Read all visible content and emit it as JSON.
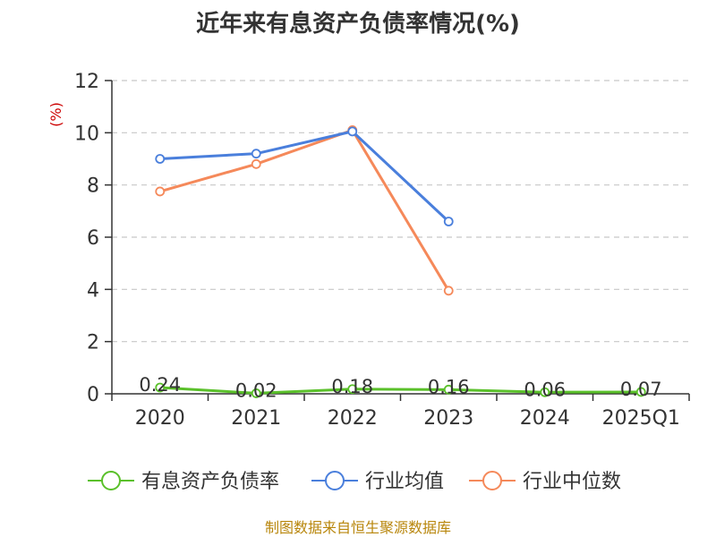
{
  "chart_data": {
    "type": "line",
    "title": "近年来有息资产负债率情况(%)",
    "ylabel": "(%)",
    "ylim": [
      0,
      12
    ],
    "yticks": [
      0,
      2,
      4,
      6,
      8,
      10,
      12
    ],
    "categories": [
      "2020",
      "2021",
      "2022",
      "2023",
      "2024",
      "2025Q1"
    ],
    "grid": true,
    "legend_position": "bottom",
    "series": [
      {
        "name": "有息资产负债率",
        "color": "#5ac02a",
        "values": [
          0.24,
          0.02,
          0.18,
          0.16,
          0.06,
          0.07
        ],
        "labels": [
          "0.24",
          "0.02",
          "0.18",
          "0.16",
          "0.06",
          "0.07"
        ]
      },
      {
        "name": "行业均值",
        "color": "#4a7fdc",
        "values": [
          9.0,
          9.2,
          10.05,
          6.6,
          null,
          null
        ]
      },
      {
        "name": "行业中位数",
        "color": "#f5895a",
        "values": [
          7.75,
          8.8,
          10.1,
          3.95,
          null,
          null
        ]
      }
    ]
  },
  "source_text": "制图数据来自恒生聚源数据库"
}
